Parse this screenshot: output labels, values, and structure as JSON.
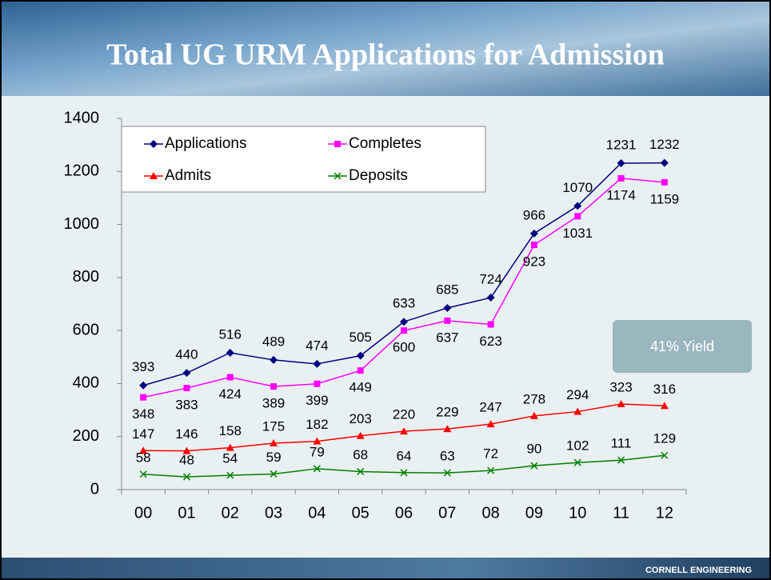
{
  "chart_data": {
    "type": "line",
    "title": "Total UG URM Applications for Admission",
    "categories": [
      "00",
      "01",
      "02",
      "03",
      "04",
      "05",
      "06",
      "07",
      "08",
      "09",
      "10",
      "11",
      "12"
    ],
    "series": [
      {
        "name": "Applications",
        "color": "#000080",
        "marker": "diamond",
        "values": [
          393,
          440,
          516,
          489,
          474,
          505,
          633,
          685,
          724,
          966,
          1070,
          1231,
          1232
        ]
      },
      {
        "name": "Completes",
        "color": "#ff00ff",
        "marker": "square",
        "values": [
          348,
          383,
          424,
          389,
          399,
          449,
          600,
          637,
          623,
          923,
          1031,
          1174,
          1159
        ]
      },
      {
        "name": "Admits",
        "color": "#ff0000",
        "marker": "triangle",
        "values": [
          147,
          146,
          158,
          175,
          182,
          203,
          220,
          229,
          247,
          278,
          294,
          323,
          316
        ]
      },
      {
        "name": "Deposits",
        "color": "#008000",
        "marker": "x",
        "values": [
          58,
          48,
          54,
          59,
          79,
          68,
          64,
          63,
          72,
          90,
          102,
          111,
          129
        ]
      }
    ],
    "ylim": [
      0,
      1400
    ],
    "yticks": [
      0,
      200,
      400,
      600,
      800,
      1000,
      1200,
      1400
    ],
    "legend": "upper left",
    "annotation": "41% Yield"
  },
  "footer": "CORNELL ENGINEERING"
}
